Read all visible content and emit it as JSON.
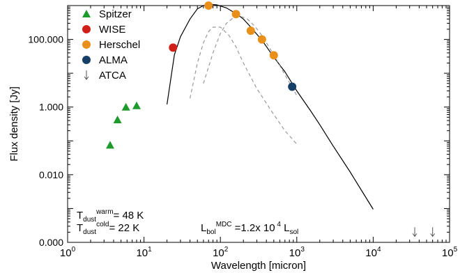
{
  "chart_data": {
    "type": "scatter",
    "xlabel": "Wavelength [micron]",
    "ylabel": "Flux density [Jy]",
    "x_scale": "log",
    "y_scale": "log",
    "xlim": [
      1,
      100000
    ],
    "ylim": [
      0.0001,
      1000
    ],
    "x_ticks": [
      {
        "value": 1,
        "base": "10",
        "exp": "0"
      },
      {
        "value": 10,
        "base": "10",
        "exp": "1"
      },
      {
        "value": 100,
        "base": "10",
        "exp": "2"
      },
      {
        "value": 1000,
        "base": "10",
        "exp": "3"
      },
      {
        "value": 10000,
        "base": "10",
        "exp": "4"
      },
      {
        "value": 100000,
        "base": "10",
        "exp": "5"
      }
    ],
    "y_ticks": [
      {
        "value": 0.0001,
        "label": "0.000"
      },
      {
        "value": 0.01,
        "label": "0.010"
      },
      {
        "value": 1,
        "label": "1.000"
      },
      {
        "value": 100,
        "label": "100.000"
      }
    ],
    "series": [
      {
        "name": "Spitzer",
        "marker": "triangle",
        "color": "#1e9a2c",
        "points": [
          [
            3.6,
            0.075
          ],
          [
            4.5,
            0.42
          ],
          [
            5.8,
            1.0
          ],
          [
            8.0,
            1.1
          ]
        ]
      },
      {
        "name": "WISE",
        "marker": "circle",
        "color": "#d0201a",
        "points": [
          [
            24,
            57
          ]
        ]
      },
      {
        "name": "Herschel",
        "marker": "circle",
        "color": "#e8901a",
        "points": [
          [
            70,
            1000
          ],
          [
            160,
            560
          ],
          [
            250,
            180
          ],
          [
            350,
            100
          ],
          [
            500,
            34
          ]
        ]
      },
      {
        "name": "ALMA",
        "marker": "circle",
        "color": "#163f66",
        "points": [
          [
            870,
            4.0
          ]
        ]
      },
      {
        "name": "ATCA",
        "marker": "arrow-down",
        "color": "#555555",
        "points": [
          [
            35000,
            0.0002
          ],
          [
            60000,
            0.0002
          ]
        ]
      }
    ],
    "model_curves": [
      {
        "style": "solid",
        "color": "#000000",
        "points": [
          [
            20,
            1.2
          ],
          [
            25,
            35
          ],
          [
            30,
            120
          ],
          [
            40,
            400
          ],
          [
            50,
            800
          ],
          [
            60,
            1000
          ],
          [
            70,
            1100
          ],
          [
            90,
            1050
          ],
          [
            120,
            850
          ],
          [
            160,
            580
          ],
          [
            200,
            400
          ],
          [
            250,
            230
          ],
          [
            350,
            95
          ],
          [
            500,
            30
          ],
          [
            700,
            11
          ],
          [
            870,
            5.0
          ],
          [
            1000,
            3.0
          ],
          [
            1500,
            0.8
          ],
          [
            2000,
            0.3
          ],
          [
            3000,
            0.07
          ],
          [
            5000,
            0.012
          ],
          [
            7000,
            0.0035
          ],
          [
            10000,
            0.00095
          ]
        ]
      },
      {
        "style": "dashed",
        "color": "#999999",
        "points": [
          [
            40,
            1.8
          ],
          [
            50,
            20
          ],
          [
            60,
            80
          ],
          [
            70,
            170
          ],
          [
            80,
            230
          ],
          [
            100,
            230
          ],
          [
            130,
            130
          ],
          [
            160,
            60
          ],
          [
            200,
            20
          ],
          [
            300,
            3.5
          ],
          [
            500,
            0.6
          ],
          [
            700,
            0.2
          ],
          [
            1000,
            0.08
          ]
        ]
      },
      {
        "style": "dashed",
        "color": "#999999",
        "points": [
          [
            60,
            5
          ],
          [
            80,
            40
          ],
          [
            100,
            150
          ],
          [
            120,
            300
          ],
          [
            150,
            450
          ],
          [
            180,
            480
          ],
          [
            220,
            420
          ],
          [
            280,
            250
          ],
          [
            350,
            130
          ],
          [
            500,
            35
          ],
          [
            700,
            9
          ],
          [
            1000,
            2.2
          ]
        ]
      }
    ],
    "annotations": {
      "t_warm": {
        "T": "T",
        "sub": "dust",
        "sup": "warm",
        "value": "=  48 K"
      },
      "t_cold": {
        "T": "T",
        "sub": "dust",
        "sup": "cold",
        "value": "=  22 K"
      },
      "lbol": {
        "L": "L",
        "sub": "bol",
        "sup": "MDC",
        "mid": "=1.2x 10",
        "exp": "4",
        "L2": "L",
        "sub2": "sol"
      }
    },
    "legend_position": "top-left",
    "grid": false
  }
}
